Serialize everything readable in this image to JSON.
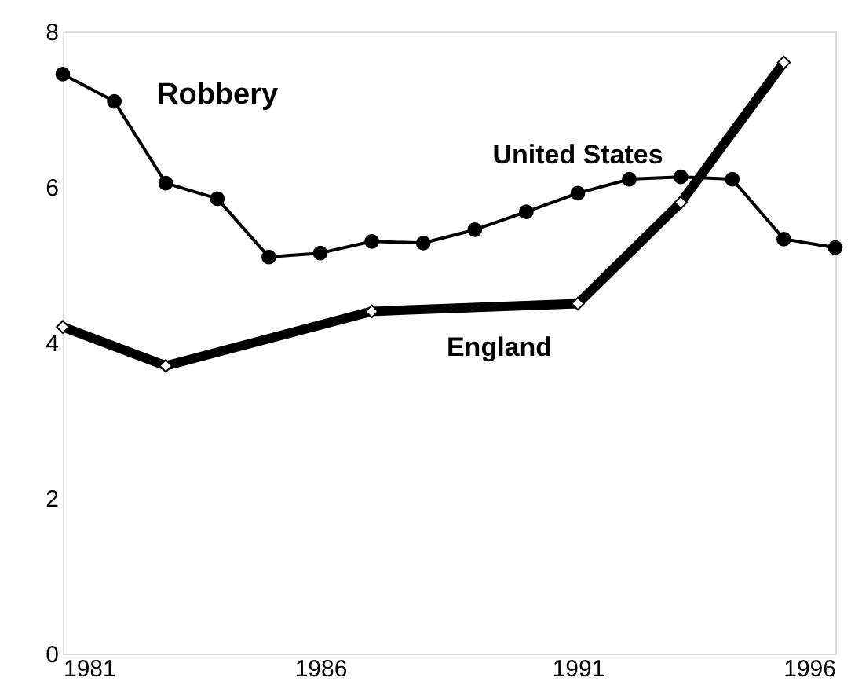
{
  "chart_data": {
    "type": "line",
    "annotations": [
      "Robbery"
    ],
    "xlim": [
      1981,
      1996
    ],
    "xticks": [
      1981,
      1986,
      1991,
      1996
    ],
    "ylim": [
      0,
      8
    ],
    "yticks": [
      0,
      2,
      4,
      6,
      8
    ],
    "grid": false,
    "series": [
      {
        "name": "United States",
        "color": "#000000",
        "marker": "circle",
        "x": [
          1981,
          1982,
          1983,
          1984,
          1985,
          1986,
          1987,
          1988,
          1989,
          1990,
          1991,
          1992,
          1993,
          1994,
          1995,
          1996
        ],
        "values": [
          7.45,
          7.1,
          6.05,
          5.85,
          5.1,
          5.15,
          5.3,
          5.28,
          5.45,
          5.68,
          5.92,
          6.1,
          6.13,
          6.1,
          5.33,
          5.22
        ]
      },
      {
        "name": "England",
        "color": "#000000",
        "marker": "diamond",
        "x": [
          1981,
          1983,
          1987,
          1991,
          1993,
          1995
        ],
        "values": [
          4.2,
          3.7,
          4.4,
          4.5,
          5.8,
          7.6
        ]
      }
    ]
  }
}
